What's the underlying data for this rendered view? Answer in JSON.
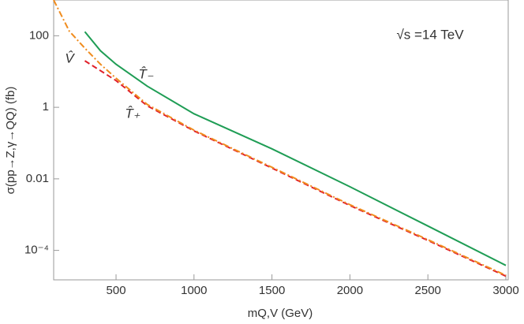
{
  "chart_data": {
    "type": "line",
    "log_y": true,
    "xlabel": "mQ,V (GeV)",
    "ylabel": "σ(pp→Z,γ→QQ) (fb)",
    "annotation": "√s =14 TeV",
    "xlim": [
      100,
      3000
    ],
    "xticks": [
      500,
      1000,
      1500,
      2000,
      2500,
      3000
    ],
    "ylim": [
      1.5e-05,
      1000
    ],
    "yticks": [
      100,
      1,
      0.01,
      {
        "value": 0.0001,
        "label": "10⁻⁴"
      }
    ],
    "series": [
      {
        "name": "T̂₋",
        "color": "#1f9d55",
        "label_color": "#2030d0",
        "dash": "",
        "x": [
          300,
          400,
          500,
          700,
          1000,
          1500,
          2000,
          2500,
          3000
        ],
        "values": [
          130,
          38,
          16,
          3.9,
          0.66,
          0.069,
          0.006,
          0.00048,
          3.8e-05
        ]
      },
      {
        "name": "T̂₊",
        "color": "#e0202a",
        "label_color": "#e0202a",
        "dash": "7,4",
        "x": [
          300,
          500,
          700,
          1000,
          1500,
          2000,
          2500,
          3000
        ],
        "values": [
          20,
          5.6,
          1.1,
          0.22,
          0.02,
          0.0018,
          0.00019,
          1.9e-05
        ]
      },
      {
        "name": "V̂",
        "color": "#f08c1e",
        "label_color": "#f08c1e",
        "dash": "8,3,2,3",
        "x": [
          100,
          200,
          300,
          400,
          500,
          700,
          1000,
          1500,
          2000,
          2500,
          3000
        ],
        "values": [
          1000,
          135,
          45,
          16,
          6.5,
          1.2,
          0.23,
          0.021,
          0.0019,
          0.0002,
          2e-05
        ]
      }
    ]
  }
}
